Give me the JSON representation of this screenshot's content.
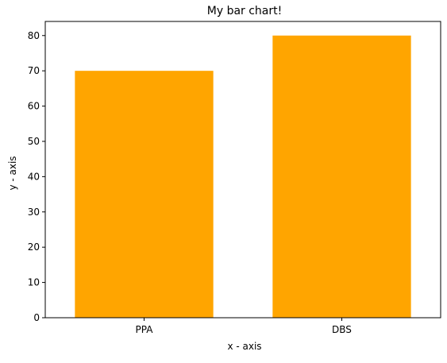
{
  "chart_data": {
    "type": "bar",
    "title": "My bar chart!",
    "xlabel": "x - axis",
    "ylabel": "y - axis",
    "categories": [
      "PPA",
      "DBS"
    ],
    "values": [
      70,
      80
    ],
    "ylim": [
      0,
      84
    ],
    "yticks": [
      0,
      10,
      20,
      30,
      40,
      50,
      60,
      70,
      80
    ],
    "grid": false,
    "legend": "none",
    "colors": {
      "bar": "#ffa500",
      "axis": "#000000",
      "background": "#ffffff"
    }
  }
}
